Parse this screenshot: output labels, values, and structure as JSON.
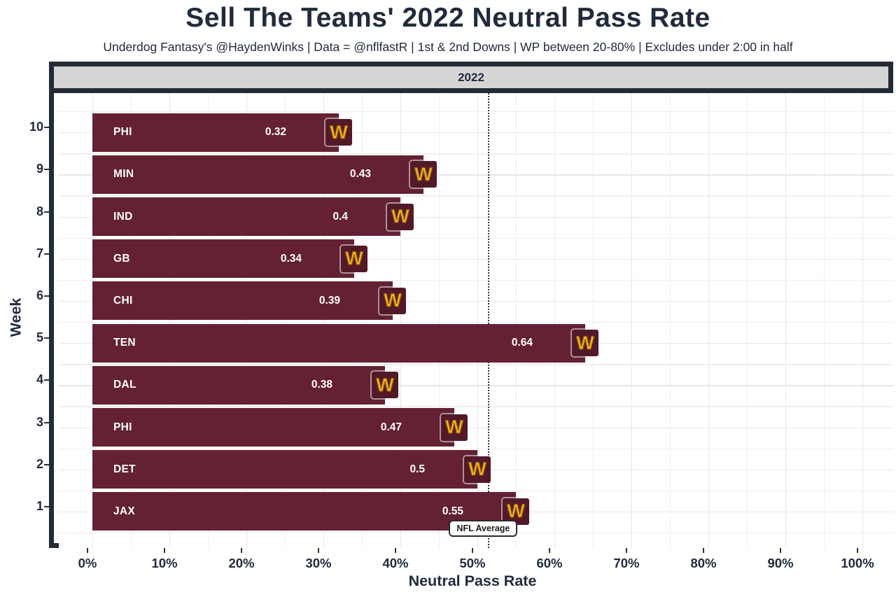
{
  "title": "Sell The Teams' 2022 Neutral Pass Rate",
  "subtitle": "Underdog Fantasy's @HaydenWinks | Data = @nflfastR | 1st & 2nd Downs | WP between 20-80% | Excludes under 2:00 in half",
  "facet": {
    "label": "2022"
  },
  "axes": {
    "x_title": "Neutral Pass Rate",
    "y_title": "Week",
    "x_tick_labels": [
      "0%",
      "10%",
      "20%",
      "30%",
      "40%",
      "50%",
      "60%",
      "70%",
      "80%",
      "90%",
      "100%"
    ]
  },
  "logo": {
    "letter": "W"
  },
  "colors": {
    "bar": "#632133",
    "logo_bg": "#521a28",
    "logo_gold": "#ffb81c",
    "frame": "#242a36",
    "strip_bg": "#d5d5d5",
    "text": "#222b3c",
    "grid_minor": "#efefef",
    "grid_major": "#e7e7e7",
    "ref_line": "#2e3440"
  },
  "chart_data": {
    "type": "bar",
    "orientation": "horizontal",
    "title": "Sell The Teams' 2022 Neutral Pass Rate",
    "facet": "2022",
    "xlabel": "Neutral Pass Rate",
    "ylabel": "Week",
    "xlim": [
      0,
      1
    ],
    "x_ticks_percent": [
      0,
      10,
      20,
      30,
      40,
      50,
      60,
      70,
      80,
      90,
      100
    ],
    "grid": true,
    "legend": "none",
    "categories": [
      "10",
      "9",
      "8",
      "7",
      "6",
      "5",
      "4",
      "3",
      "2",
      "1"
    ],
    "rows": [
      {
        "week": "10",
        "opponent": "PHI",
        "value": 0.32,
        "label": "0.32"
      },
      {
        "week": "9",
        "opponent": "MIN",
        "value": 0.43,
        "label": "0.43"
      },
      {
        "week": "8",
        "opponent": "IND",
        "value": 0.4,
        "label": "0.4"
      },
      {
        "week": "7",
        "opponent": "GB",
        "value": 0.34,
        "label": "0.34"
      },
      {
        "week": "6",
        "opponent": "CHI",
        "value": 0.39,
        "label": "0.39"
      },
      {
        "week": "5",
        "opponent": "TEN",
        "value": 0.64,
        "label": "0.64"
      },
      {
        "week": "4",
        "opponent": "DAL",
        "value": 0.38,
        "label": "0.38"
      },
      {
        "week": "3",
        "opponent": "PHI",
        "value": 0.47,
        "label": "0.47"
      },
      {
        "week": "2",
        "opponent": "DET",
        "value": 0.5,
        "label": "0.5"
      },
      {
        "week": "1",
        "opponent": "JAX",
        "value": 0.55,
        "label": "0.55"
      }
    ],
    "reference_line": {
      "value": 0.514,
      "label": "NFL Average"
    }
  }
}
